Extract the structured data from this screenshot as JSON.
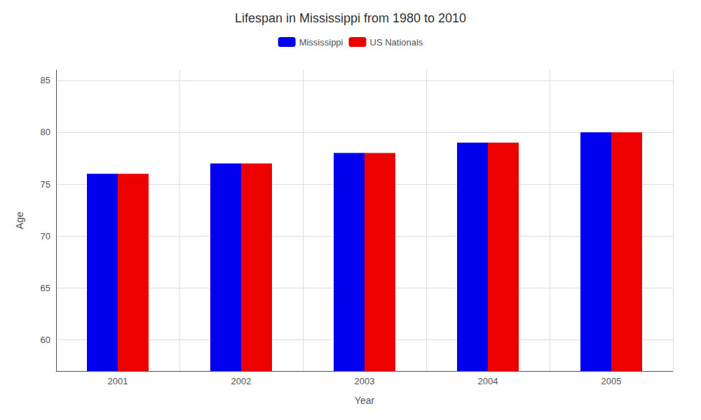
{
  "chart_data": {
    "type": "bar",
    "title": "Lifespan in Mississippi from 1980 to 2010",
    "xlabel": "Year",
    "ylabel": "Age",
    "categories": [
      2001,
      2002,
      2003,
      2004,
      2005
    ],
    "series": [
      {
        "name": "Mississippi",
        "color": "#0000ee",
        "values": [
          76,
          77,
          78,
          79,
          80
        ]
      },
      {
        "name": "US Nationals",
        "color": "#ee0000",
        "values": [
          76,
          77,
          78,
          79,
          80
        ]
      }
    ],
    "ylim": [
      57,
      86
    ],
    "yticks": [
      60,
      65,
      70,
      75,
      80,
      85
    ],
    "grid": true,
    "legend": "top"
  }
}
